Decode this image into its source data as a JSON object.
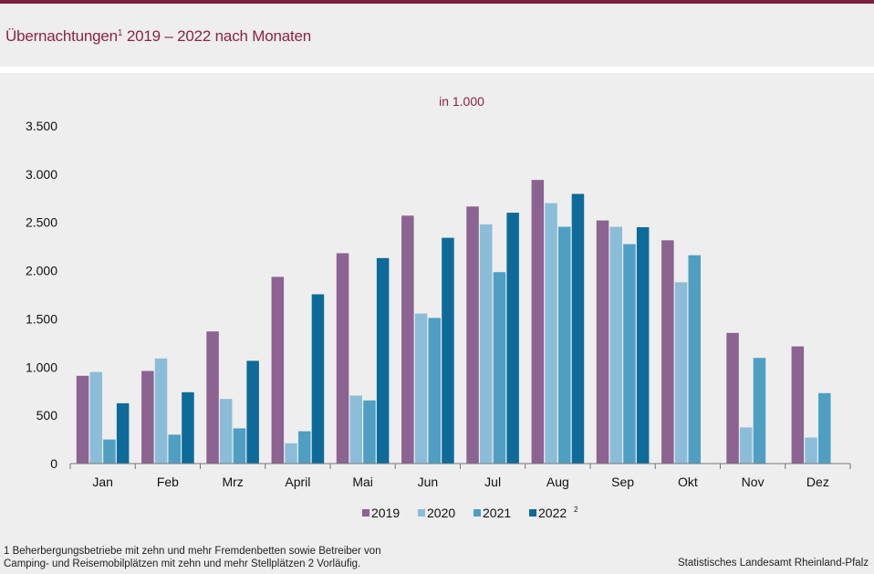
{
  "header": {
    "title": "Übernachtungen",
    "title_sup": "1",
    "title_rest": " 2019 – 2022 nach Monaten"
  },
  "chart_data": {
    "type": "bar",
    "subtitle": "in 1.000",
    "categories": [
      "Jan",
      "Feb",
      "Mrz",
      "April",
      "Mai",
      "Jun",
      "Jul",
      "Aug",
      "Sep",
      "Okt",
      "Nov",
      "Dez"
    ],
    "ylim": [
      0,
      3500
    ],
    "yticks": [
      0,
      500,
      1000,
      1500,
      2000,
      2500,
      3000,
      3500
    ],
    "ytick_labels": [
      "0",
      "500",
      "1.000",
      "1.500",
      "2.000",
      "2.500",
      "3.000",
      "3.500"
    ],
    "series": [
      {
        "name": "2019",
        "color": "#8c6391",
        "values": [
          910,
          960,
          1370,
          1935,
          2180,
          2570,
          2665,
          2940,
          2520,
          2315,
          1355,
          1215
        ]
      },
      {
        "name": "2020",
        "color": "#8cbdd8",
        "values": [
          950,
          1090,
          670,
          210,
          705,
          1555,
          2480,
          2700,
          2455,
          1880,
          375,
          270
        ]
      },
      {
        "name": "2021",
        "color": "#4f9fc3",
        "values": [
          250,
          300,
          365,
          335,
          655,
          1510,
          1985,
          2455,
          2275,
          2160,
          1095,
          730
        ]
      },
      {
        "name": "2022",
        "sup": "2",
        "color": "#0e6b99",
        "values": [
          625,
          740,
          1065,
          1755,
          2130,
          2340,
          2600,
          2795,
          2450,
          null,
          null,
          null
        ]
      }
    ]
  },
  "footer": {
    "footnote_line1": "1 Beherbergungsbetriebe  mit zehn und mehr Fremdenbetten  sowie Betreiber von",
    "footnote_line2": "Camping- und Reisemobilplätzen  mit zehn und mehr Stellplätzen    2 Vorläufig.",
    "source": "Statistisches Landesamt Rheinland-Pfalz"
  }
}
